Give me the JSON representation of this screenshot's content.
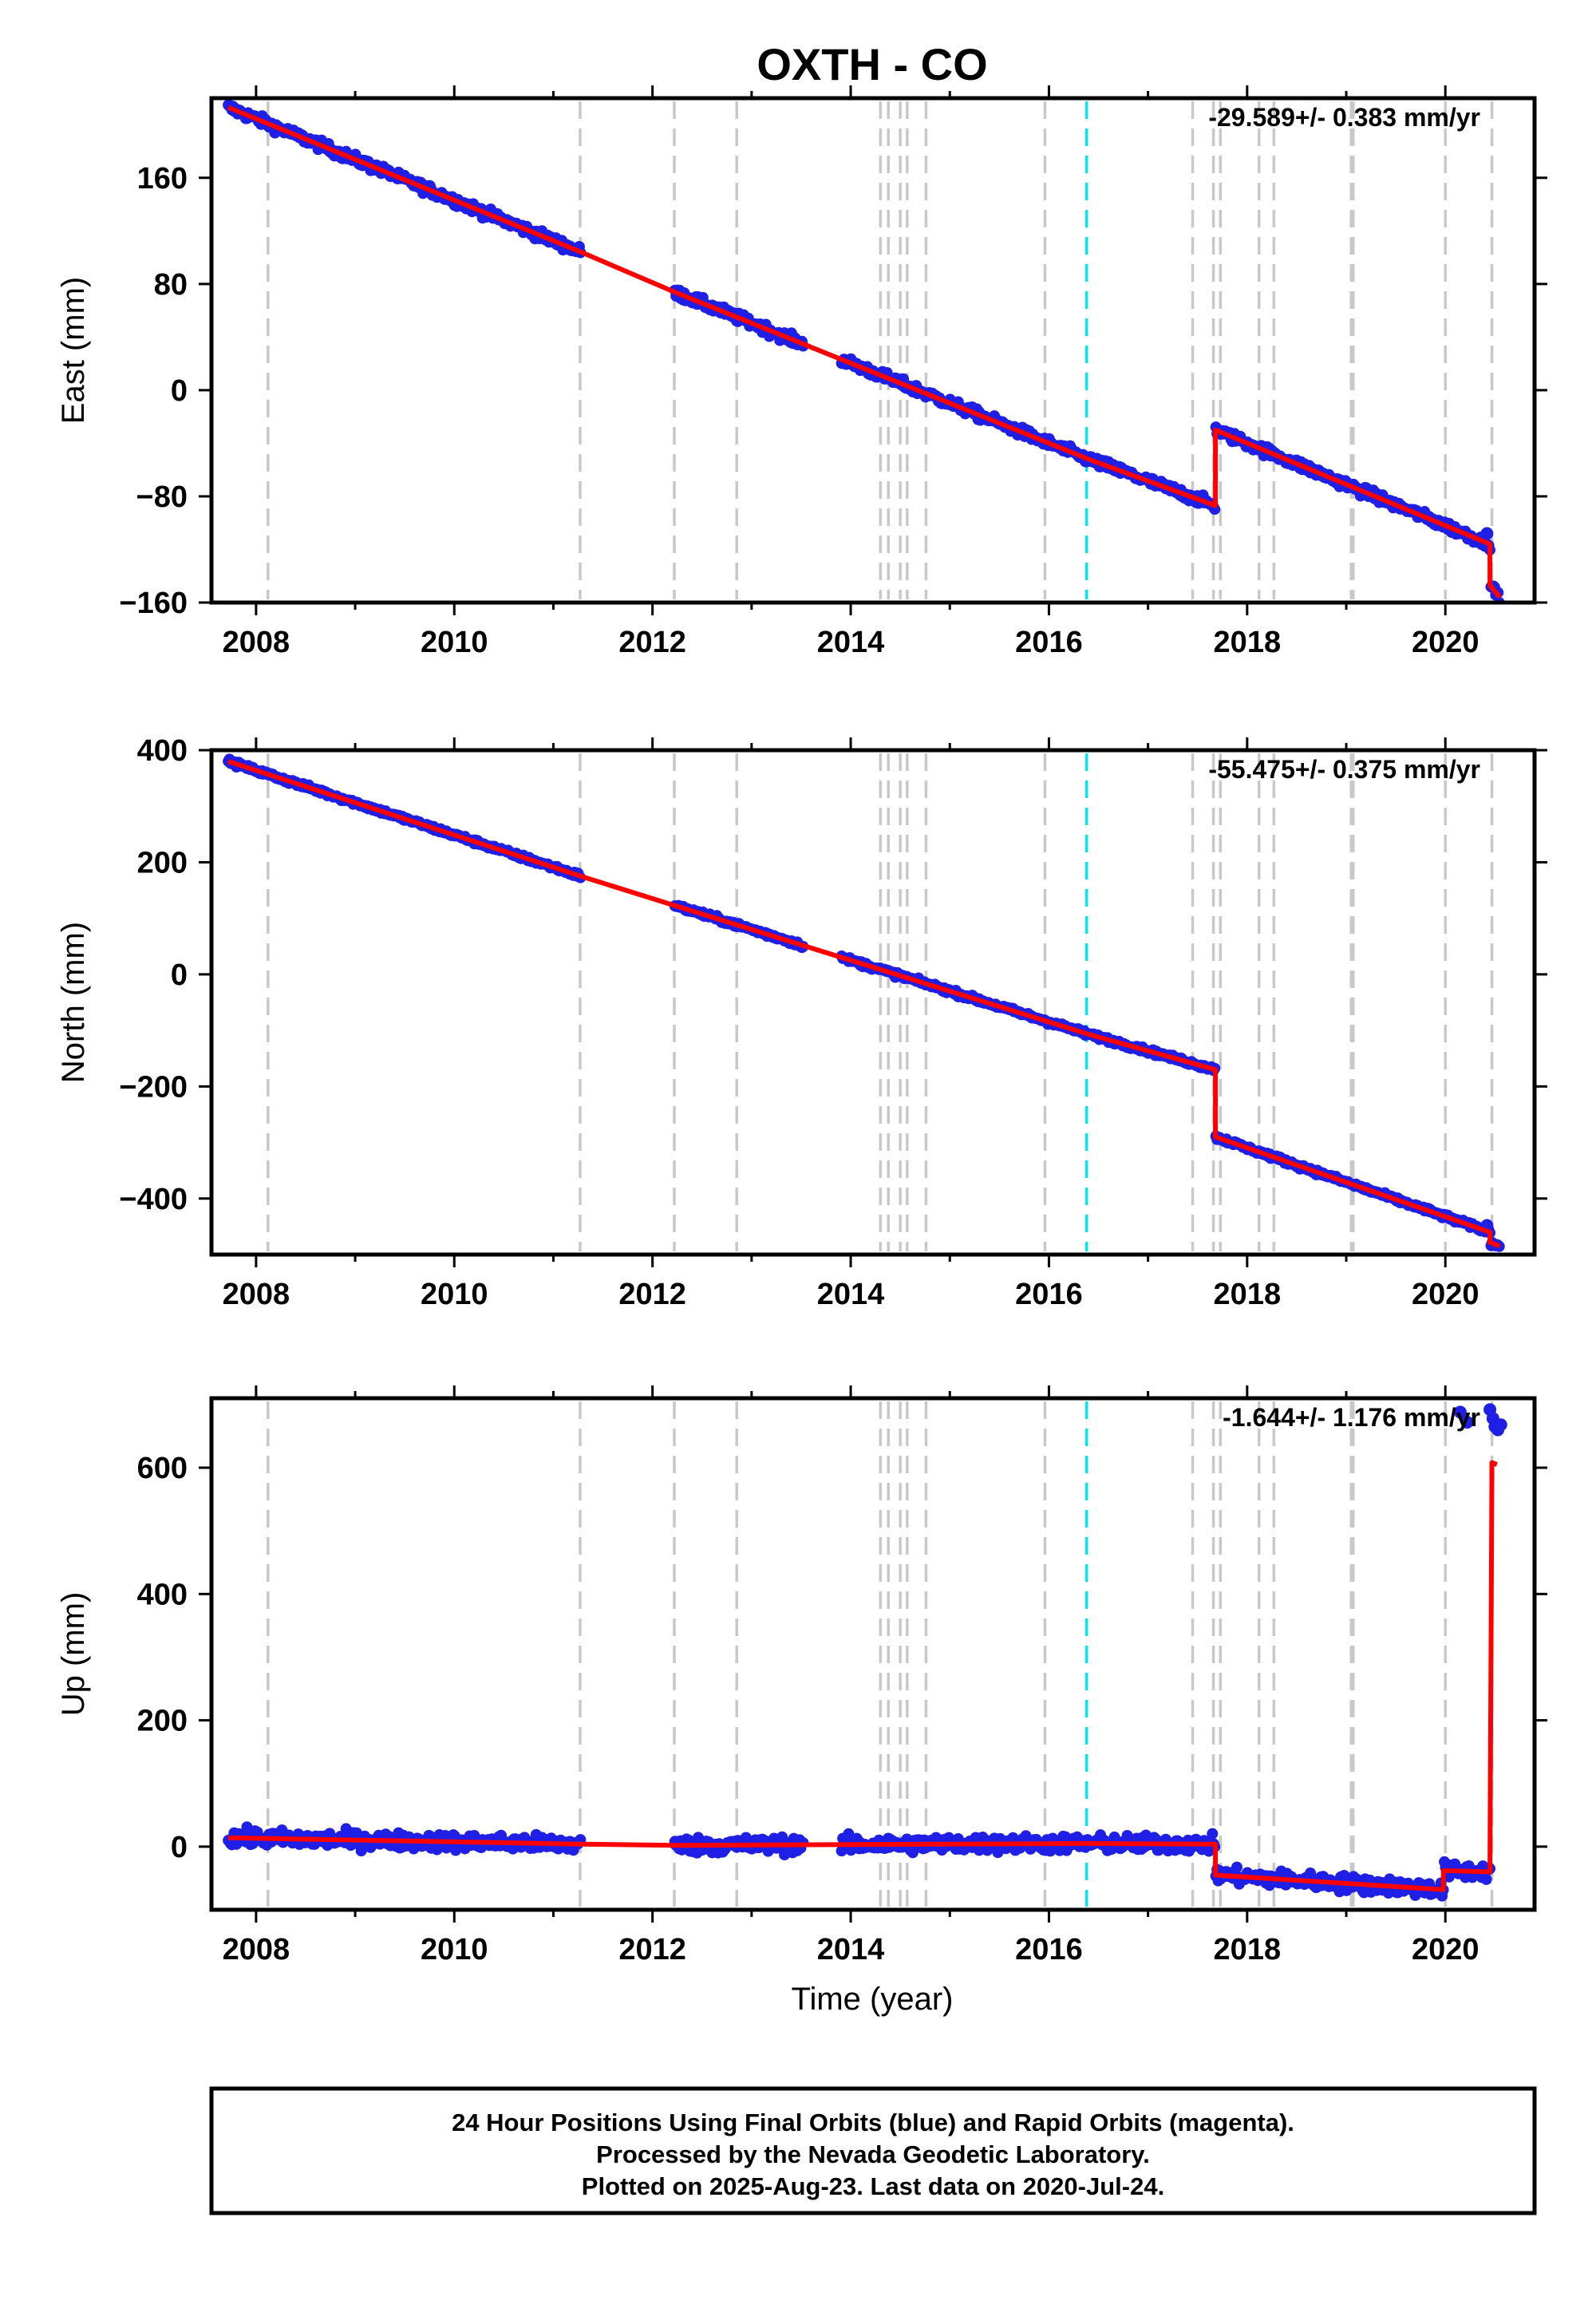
{
  "title": "OXTH - CO",
  "x_axis_label": "Time (year)",
  "footer_lines": [
    "24 Hour Positions Using Final Orbits (blue) and Rapid Orbits (magenta).",
    "Processed by the Nevada Geodetic Laboratory.",
    "Plotted on 2025-Aug-23. Last data on 2020-Jul-24."
  ],
  "colors": {
    "data_points": "#1f1fe6",
    "model_line": "#ff0000",
    "equipment_change_line": "#c8c8c8",
    "earthquake_line": "#00e5ee",
    "axis": "#000000"
  },
  "chart_data": [
    {
      "type": "scatter",
      "panel": "east",
      "ylabel": "East (mm)",
      "rate_label": "-29.589+/- 0.383 mm/yr",
      "xlim": [
        2007.55,
        2020.9
      ],
      "ylim": [
        -160,
        220
      ],
      "x_ticks": [
        2008,
        2010,
        2012,
        2014,
        2016,
        2018,
        2020
      ],
      "y_ticks": [
        160,
        80,
        0,
        -80,
        -160
      ],
      "y_tick_labels": [
        "160",
        "80",
        "0",
        "−80",
        "−160"
      ],
      "gaps": [
        [
          2011.28,
          2012.22
        ],
        [
          2013.52,
          2013.9
        ]
      ],
      "model_knots": [
        [
          2007.72,
          213
        ],
        [
          2011.28,
          104
        ],
        [
          2012.22,
          74
        ],
        [
          2016.4,
          -52
        ],
        [
          2017.68,
          -87
        ],
        [
          2017.68,
          -30
        ],
        [
          2020.45,
          -116
        ],
        [
          2020.45,
          -147
        ],
        [
          2020.55,
          -156
        ]
      ],
      "noise_mm": 3.5,
      "extra_points": [
        [
          2020.42,
          -108
        ]
      ]
    },
    {
      "type": "scatter",
      "panel": "north",
      "ylabel": "North (mm)",
      "rate_label": "-55.475+/- 0.375 mm/yr",
      "xlim": [
        2007.55,
        2020.9
      ],
      "ylim": [
        -500,
        400
      ],
      "x_ticks": [
        2008,
        2010,
        2012,
        2014,
        2016,
        2018,
        2020
      ],
      "y_ticks": [
        400,
        200,
        0,
        -200,
        -400
      ],
      "y_tick_labels": [
        "400",
        "200",
        "0",
        "−200",
        "−400"
      ],
      "gaps": [
        [
          2011.28,
          2012.22
        ],
        [
          2013.52,
          2013.9
        ]
      ],
      "model_knots": [
        [
          2007.72,
          380
        ],
        [
          2011.28,
          175
        ],
        [
          2012.22,
          123
        ],
        [
          2016.4,
          -107
        ],
        [
          2017.68,
          -170
        ],
        [
          2017.68,
          -290
        ],
        [
          2020.45,
          -460
        ],
        [
          2020.45,
          -478
        ],
        [
          2020.55,
          -485
        ]
      ],
      "noise_mm": 4,
      "extra_points": [
        [
          2020.42,
          -448
        ]
      ]
    },
    {
      "type": "scatter",
      "panel": "up",
      "ylabel": "Up (mm)",
      "rate_label": "-1.644+/- 1.176 mm/yr",
      "xlim": [
        2007.55,
        2020.9
      ],
      "ylim": [
        -100,
        710
      ],
      "x_ticks": [
        2008,
        2010,
        2012,
        2014,
        2016,
        2018,
        2020
      ],
      "y_ticks": [
        600,
        400,
        200,
        0
      ],
      "y_tick_labels": [
        "600",
        "400",
        "200",
        "0"
      ],
      "gaps": [
        [
          2011.28,
          2012.22
        ],
        [
          2013.52,
          2013.9
        ]
      ],
      "model_knots": [
        [
          2007.72,
          14
        ],
        [
          2011.28,
          4
        ],
        [
          2012.22,
          2
        ],
        [
          2016.4,
          5
        ],
        [
          2017.68,
          4
        ],
        [
          2017.68,
          -45
        ],
        [
          2019.98,
          -68
        ],
        [
          2019.98,
          -38
        ],
        [
          2020.45,
          -40
        ],
        [
          2020.47,
          608
        ],
        [
          2020.52,
          605
        ]
      ],
      "noise_mm": 12,
      "extra_points": [
        [
          2020.15,
          688
        ],
        [
          2020.22,
          672
        ],
        [
          2020.45,
          692
        ],
        [
          2020.48,
          678
        ],
        [
          2020.5,
          665
        ],
        [
          2020.53,
          660
        ],
        [
          2020.56,
          668
        ]
      ]
    }
  ],
  "equipment_change_years": [
    2008.12,
    2011.27,
    2012.22,
    2012.85,
    2014.3,
    2014.38,
    2014.5,
    2014.57,
    2014.76,
    2015.96,
    2017.45,
    2017.66,
    2017.73,
    2018.12,
    2018.27,
    2019.05,
    2019.07,
    2020.0,
    2020.47
  ],
  "earthquake_years": [
    2016.38
  ]
}
